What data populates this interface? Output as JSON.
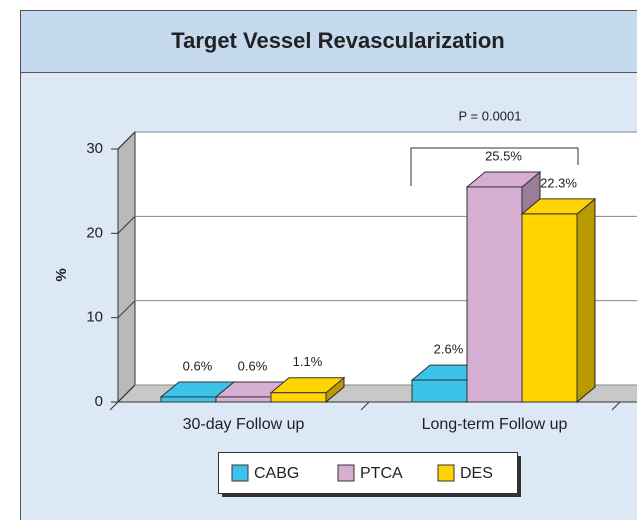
{
  "chart_data": {
    "type": "bar",
    "title": "Target Vessel Revascularization",
    "y_label": "%",
    "categories": [
      "30-day Follow up",
      "Long-term Follow up"
    ],
    "series": [
      {
        "name": "CABG",
        "color": "#3cc3ea",
        "values": [
          0.6,
          2.6
        ],
        "value_labels": [
          "0.6%",
          "2.6%"
        ]
      },
      {
        "name": "PTCA",
        "color": "#d6aed2",
        "values": [
          0.6,
          25.5
        ],
        "value_labels": [
          "0.6%",
          "25.5%"
        ]
      },
      {
        "name": "DES",
        "color": "#ffd400",
        "values": [
          1.1,
          22.3
        ],
        "value_labels": [
          "1.1%",
          "22.3%"
        ]
      }
    ],
    "ylim": [
      0,
      30
    ],
    "yticks": [
      0,
      10,
      20,
      30
    ],
    "grid": true,
    "legend": "bottom",
    "annotation": "P = 0.0001"
  }
}
